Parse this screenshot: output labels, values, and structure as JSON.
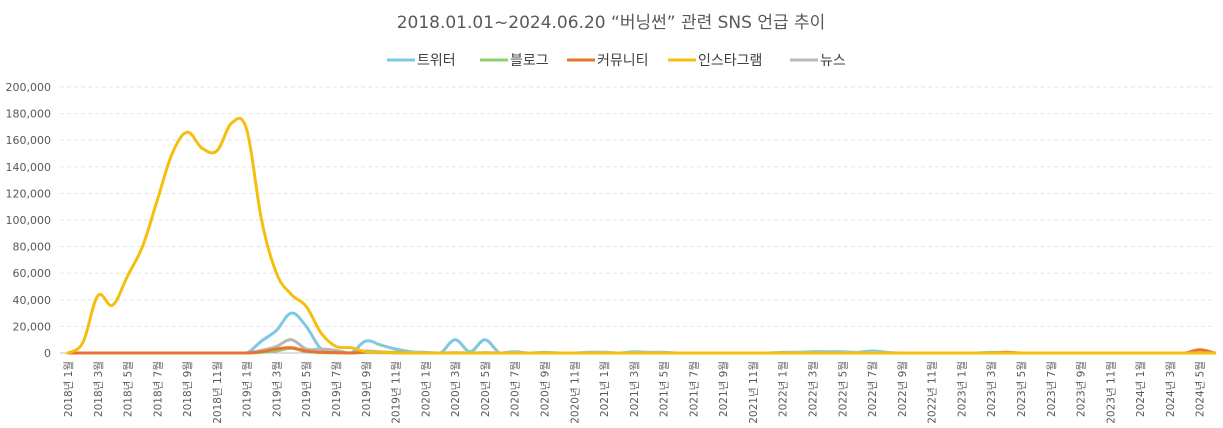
{
  "chart_data": {
    "type": "line",
    "title": "2018.01.01~2024.06.20 “버닝썬” 관련 SNS 언급 추이",
    "xlabel": "",
    "ylabel": "",
    "ylim": [
      0,
      200000
    ],
    "yticks": [
      0,
      20000,
      40000,
      60000,
      80000,
      100000,
      120000,
      140000,
      160000,
      180000,
      200000
    ],
    "ytick_labels": [
      "0",
      "20,000",
      "40,000",
      "60,000",
      "80,000",
      "100,000",
      "120,000",
      "140,000",
      "160,000",
      "180,000",
      "200,000"
    ],
    "grid": true,
    "legend_position": "top-center",
    "tick_labels": [
      "2018년 1월",
      "2018년 3월",
      "2018년 5월",
      "2018년 7월",
      "2018년 9월",
      "2018년 11월",
      "2019년 1월",
      "2019년 3월",
      "2019년 5월",
      "2019년 7월",
      "2019년 9월",
      "2019년 11월",
      "2020년 1월",
      "2020년 3월",
      "2020년 5월",
      "2020년 7월",
      "2020년 9월",
      "2020년 11월",
      "2021년 1월",
      "2021년 3월",
      "2021년 5월",
      "2021년 7월",
      "2021년 9월",
      "2021년 11월",
      "2022년 1월",
      "2022년 3월",
      "2022년 5월",
      "2022년 7월",
      "2022년 9월",
      "2022년 11월",
      "2023년 1월",
      "2023년 3월",
      "2023년 5월",
      "2023년 7월",
      "2023년 9월",
      "2023년 11월",
      "2024년 1월",
      "2024년 3월",
      "2024년 5월"
    ],
    "x": [
      "2018-01",
      "2018-02",
      "2018-03",
      "2018-04",
      "2018-05",
      "2018-06",
      "2018-07",
      "2018-08",
      "2018-09",
      "2018-10",
      "2018-11",
      "2018-12",
      "2019-01",
      "2019-02",
      "2019-03",
      "2019-04",
      "2019-05",
      "2019-06",
      "2019-07",
      "2019-08",
      "2019-09",
      "2019-10",
      "2019-11",
      "2019-12",
      "2020-01",
      "2020-02",
      "2020-03",
      "2020-04",
      "2020-05",
      "2020-06",
      "2020-07",
      "2020-08",
      "2020-09",
      "2020-10",
      "2020-11",
      "2020-12",
      "2021-01",
      "2021-02",
      "2021-03",
      "2021-04",
      "2021-05",
      "2021-06",
      "2021-07",
      "2021-08",
      "2021-09",
      "2021-10",
      "2021-11",
      "2021-12",
      "2022-01",
      "2022-02",
      "2022-03",
      "2022-04",
      "2022-05",
      "2022-06",
      "2022-07",
      "2022-08",
      "2022-09",
      "2022-10",
      "2022-11",
      "2022-12",
      "2023-01",
      "2023-02",
      "2023-03",
      "2023-04",
      "2023-05",
      "2023-06",
      "2023-07",
      "2023-08",
      "2023-09",
      "2023-10",
      "2023-11",
      "2023-12",
      "2024-01",
      "2024-02",
      "2024-03",
      "2024-04",
      "2024-05",
      "2024-06"
    ],
    "series": [
      {
        "name": "트위터",
        "color": "#7ec8e3",
        "values": [
          0,
          0,
          0,
          0,
          0,
          0,
          0,
          0,
          0,
          0,
          0,
          0,
          0,
          9000,
          17000,
          30000,
          20000,
          3000,
          1000,
          0,
          9000,
          6000,
          3000,
          1000,
          500,
          0,
          10000,
          1000,
          10000,
          0,
          1000,
          0,
          500,
          0,
          0,
          500,
          500,
          0,
          1000,
          500,
          500,
          0,
          0,
          0,
          0,
          0,
          0,
          0,
          500,
          500,
          1000,
          1000,
          1000,
          500,
          1500,
          500,
          0,
          0,
          0,
          0,
          0,
          0,
          500,
          0,
          0,
          0,
          0,
          0,
          0,
          0,
          0,
          0,
          0,
          0,
          0,
          0,
          0,
          0
        ]
      },
      {
        "name": "블로그",
        "color": "#8fd16f",
        "values": [
          0,
          0,
          0,
          0,
          0,
          0,
          0,
          0,
          0,
          0,
          0,
          0,
          0,
          500,
          1500,
          3500,
          1000,
          300,
          200,
          0,
          300,
          200,
          100,
          0,
          0,
          0,
          0,
          0,
          0,
          0,
          0,
          0,
          0,
          0,
          0,
          0,
          0,
          0,
          0,
          0,
          0,
          0,
          0,
          0,
          0,
          0,
          0,
          0,
          0,
          0,
          0,
          0,
          0,
          0,
          0,
          0,
          0,
          0,
          0,
          0,
          0,
          0,
          0,
          0,
          0,
          0,
          0,
          0,
          0,
          0,
          0,
          0,
          0,
          0,
          0,
          0,
          0,
          0
        ]
      },
      {
        "name": "커뮤니티",
        "color": "#e8752f",
        "values": [
          0,
          0,
          0,
          0,
          0,
          0,
          0,
          0,
          0,
          0,
          0,
          0,
          0,
          1000,
          3000,
          4000,
          1500,
          500,
          300,
          0,
          800,
          500,
          300,
          0,
          0,
          0,
          0,
          0,
          0,
          0,
          0,
          0,
          0,
          0,
          0,
          0,
          0,
          0,
          0,
          0,
          0,
          0,
          0,
          0,
          0,
          0,
          0,
          0,
          0,
          0,
          0,
          0,
          0,
          0,
          0,
          0,
          0,
          0,
          0,
          0,
          0,
          0,
          0,
          500,
          0,
          0,
          0,
          0,
          0,
          0,
          0,
          0,
          0,
          0,
          0,
          0,
          2500,
          0
        ]
      },
      {
        "name": "인스타그램",
        "color": "#f5bf10",
        "values": [
          0,
          8000,
          43000,
          36000,
          58000,
          80000,
          115000,
          150000,
          166000,
          154000,
          152000,
          173000,
          168000,
          100000,
          60000,
          44000,
          35000,
          15000,
          5000,
          4000,
          1000,
          500,
          200,
          0,
          0,
          0,
          0,
          0,
          0,
          0,
          0,
          0,
          0,
          0,
          0,
          0,
          0,
          0,
          0,
          0,
          0,
          0,
          0,
          0,
          0,
          0,
          0,
          0,
          0,
          0,
          0,
          0,
          0,
          0,
          0,
          0,
          0,
          0,
          0,
          0,
          0,
          0,
          0,
          0,
          0,
          0,
          0,
          0,
          0,
          0,
          0,
          0,
          0,
          0,
          0,
          0,
          0,
          0
        ]
      },
      {
        "name": "뉴스",
        "color": "#b8b8b8",
        "values": [
          0,
          0,
          0,
          0,
          0,
          0,
          0,
          0,
          0,
          0,
          0,
          0,
          0,
          2000,
          5000,
          10000,
          3000,
          3000,
          2000,
          0,
          1500,
          800,
          500,
          200,
          0,
          0,
          300,
          0,
          300,
          0,
          0,
          0,
          0,
          0,
          0,
          0,
          0,
          0,
          0,
          0,
          0,
          0,
          0,
          0,
          0,
          0,
          0,
          0,
          0,
          0,
          0,
          0,
          0,
          0,
          0,
          0,
          0,
          0,
          0,
          0,
          0,
          0,
          0,
          0,
          0,
          0,
          0,
          0,
          0,
          0,
          0,
          0,
          0,
          0,
          0,
          0,
          0,
          0
        ]
      }
    ]
  }
}
